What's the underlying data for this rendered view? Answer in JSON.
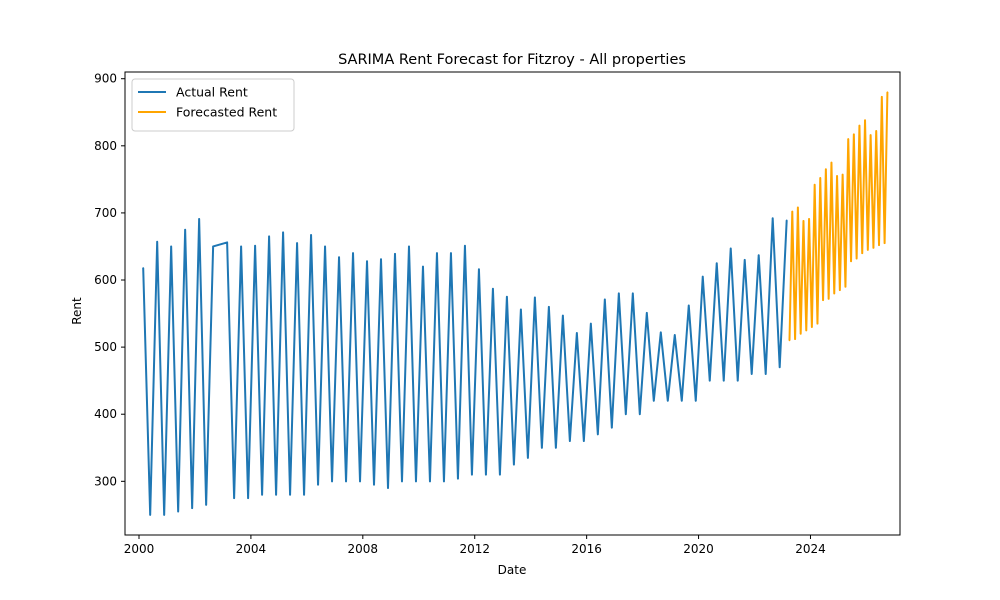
{
  "chart_data": {
    "type": "line",
    "title": "SARIMA Rent Forecast for Fitzroy - All properties",
    "xlabel": "Date",
    "ylabel": "Rent",
    "xlim": [
      1999.5,
      2027.2
    ],
    "ylim": [
      220,
      910
    ],
    "xticks": [
      2000,
      2004,
      2008,
      2012,
      2016,
      2020,
      2024
    ],
    "xtick_labels": [
      "2000",
      "2004",
      "2008",
      "2012",
      "2016",
      "2020",
      "2024"
    ],
    "yticks": [
      300,
      400,
      500,
      600,
      700,
      800,
      900
    ],
    "ytick_labels": [
      "300",
      "400",
      "500",
      "600",
      "700",
      "800",
      "900"
    ],
    "grid": false,
    "legend": {
      "placement": "top-left"
    },
    "series": [
      {
        "name": "Actual Rent",
        "color": "#1f77b4",
        "points": [
          [
            2000.15,
            618
          ],
          [
            2000.4,
            250
          ],
          [
            2000.65,
            657
          ],
          [
            2000.9,
            250
          ],
          [
            2001.15,
            650
          ],
          [
            2001.4,
            255
          ],
          [
            2001.65,
            675
          ],
          [
            2001.9,
            260
          ],
          [
            2002.15,
            691
          ],
          [
            2002.4,
            265
          ],
          [
            2002.65,
            650
          ],
          [
            2003.15,
            656
          ],
          [
            2003.4,
            275
          ],
          [
            2003.65,
            650
          ],
          [
            2003.9,
            275
          ],
          [
            2004.15,
            651
          ],
          [
            2004.4,
            280
          ],
          [
            2004.65,
            665
          ],
          [
            2004.9,
            280
          ],
          [
            2005.15,
            671
          ],
          [
            2005.4,
            280
          ],
          [
            2005.65,
            655
          ],
          [
            2005.9,
            280
          ],
          [
            2006.15,
            667
          ],
          [
            2006.4,
            295
          ],
          [
            2006.65,
            650
          ],
          [
            2006.9,
            300
          ],
          [
            2007.15,
            634
          ],
          [
            2007.4,
            300
          ],
          [
            2007.65,
            640
          ],
          [
            2007.9,
            300
          ],
          [
            2008.15,
            628
          ],
          [
            2008.4,
            295
          ],
          [
            2008.65,
            631
          ],
          [
            2008.9,
            290
          ],
          [
            2009.15,
            639
          ],
          [
            2009.4,
            300
          ],
          [
            2009.65,
            650
          ],
          [
            2009.9,
            300
          ],
          [
            2010.15,
            620
          ],
          [
            2010.4,
            300
          ],
          [
            2010.65,
            640
          ],
          [
            2010.9,
            300
          ],
          [
            2011.15,
            640
          ],
          [
            2011.4,
            304
          ],
          [
            2011.65,
            651
          ],
          [
            2011.9,
            310
          ],
          [
            2012.15,
            616
          ],
          [
            2012.4,
            310
          ],
          [
            2012.65,
            587
          ],
          [
            2012.9,
            310
          ],
          [
            2013.15,
            575
          ],
          [
            2013.4,
            325
          ],
          [
            2013.65,
            556
          ],
          [
            2013.9,
            335
          ],
          [
            2014.15,
            574
          ],
          [
            2014.4,
            350
          ],
          [
            2014.65,
            560
          ],
          [
            2014.9,
            350
          ],
          [
            2015.15,
            547
          ],
          [
            2015.4,
            360
          ],
          [
            2015.65,
            521
          ],
          [
            2015.9,
            360
          ],
          [
            2016.15,
            535
          ],
          [
            2016.4,
            370
          ],
          [
            2016.65,
            571
          ],
          [
            2016.9,
            380
          ],
          [
            2017.15,
            580
          ],
          [
            2017.4,
            400
          ],
          [
            2017.65,
            580
          ],
          [
            2017.9,
            400
          ],
          [
            2018.15,
            551
          ],
          [
            2018.4,
            420
          ],
          [
            2018.65,
            522
          ],
          [
            2018.9,
            420
          ],
          [
            2019.15,
            518
          ],
          [
            2019.4,
            420
          ],
          [
            2019.65,
            562
          ],
          [
            2019.9,
            420
          ],
          [
            2020.15,
            605
          ],
          [
            2020.4,
            450
          ],
          [
            2020.65,
            625
          ],
          [
            2020.9,
            450
          ],
          [
            2021.15,
            647
          ],
          [
            2021.4,
            450
          ],
          [
            2021.65,
            630
          ],
          [
            2021.9,
            460
          ],
          [
            2022.15,
            637
          ],
          [
            2022.4,
            460
          ],
          [
            2022.65,
            692
          ],
          [
            2022.9,
            470
          ],
          [
            2023.15,
            689
          ]
        ]
      },
      {
        "name": "Forecasted Rent",
        "color": "#ffa500",
        "points": [
          [
            2023.25,
            510
          ],
          [
            2023.35,
            702
          ],
          [
            2023.45,
            512
          ],
          [
            2023.55,
            708
          ],
          [
            2023.65,
            520
          ],
          [
            2023.75,
            688
          ],
          [
            2023.85,
            525
          ],
          [
            2023.95,
            691
          ],
          [
            2024.05,
            530
          ],
          [
            2024.15,
            742
          ],
          [
            2024.25,
            535
          ],
          [
            2024.35,
            752
          ],
          [
            2024.45,
            570
          ],
          [
            2024.55,
            765
          ],
          [
            2024.65,
            572
          ],
          [
            2024.75,
            775
          ],
          [
            2024.85,
            580
          ],
          [
            2024.95,
            755
          ],
          [
            2025.05,
            585
          ],
          [
            2025.15,
            757
          ],
          [
            2025.25,
            590
          ],
          [
            2025.35,
            810
          ],
          [
            2025.45,
            628
          ],
          [
            2025.55,
            817
          ],
          [
            2025.65,
            632
          ],
          [
            2025.75,
            830
          ],
          [
            2025.85,
            640
          ],
          [
            2025.95,
            838
          ],
          [
            2026.05,
            645
          ],
          [
            2026.15,
            816
          ],
          [
            2026.25,
            648
          ],
          [
            2026.35,
            822
          ],
          [
            2026.45,
            652
          ],
          [
            2026.55,
            873
          ],
          [
            2026.65,
            655
          ],
          [
            2026.75,
            880
          ]
        ]
      }
    ]
  }
}
